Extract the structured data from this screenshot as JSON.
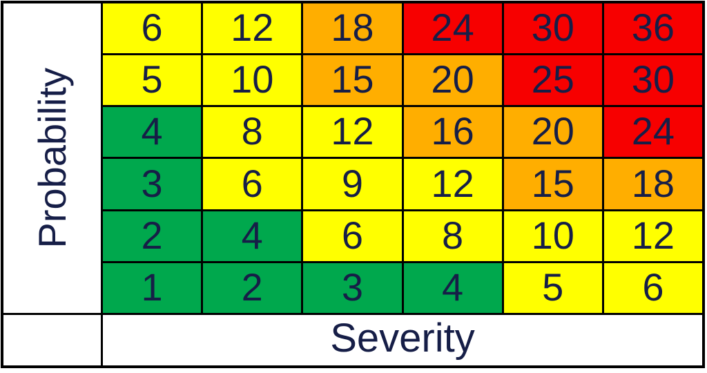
{
  "colors": {
    "green": "#00A84D",
    "yellow": "#FFFF00",
    "orange": "#FFAE00",
    "red": "#F70000",
    "text": "#161E47",
    "border": "#000000",
    "background": "#FFFFFF"
  },
  "chart_data": {
    "type": "heatmap",
    "title": "",
    "xlabel": "Severity",
    "ylabel": "Probability",
    "x_categories": [
      1,
      2,
      3,
      4,
      5,
      6
    ],
    "y_categories_top_to_bottom": [
      6,
      5,
      4,
      3,
      2,
      1
    ],
    "legend": "off",
    "rows": [
      {
        "probability": 6,
        "values": [
          6,
          12,
          18,
          24,
          30,
          36
        ],
        "levels": [
          "yellow",
          "yellow",
          "orange",
          "red",
          "red",
          "red"
        ]
      },
      {
        "probability": 5,
        "values": [
          5,
          10,
          15,
          20,
          25,
          30
        ],
        "levels": [
          "yellow",
          "yellow",
          "orange",
          "orange",
          "red",
          "red"
        ]
      },
      {
        "probability": 4,
        "values": [
          4,
          8,
          12,
          16,
          20,
          24
        ],
        "levels": [
          "green",
          "yellow",
          "yellow",
          "orange",
          "orange",
          "red"
        ]
      },
      {
        "probability": 3,
        "values": [
          3,
          6,
          9,
          12,
          15,
          18
        ],
        "levels": [
          "green",
          "yellow",
          "yellow",
          "yellow",
          "orange",
          "orange"
        ]
      },
      {
        "probability": 2,
        "values": [
          2,
          4,
          6,
          8,
          10,
          12
        ],
        "levels": [
          "green",
          "green",
          "yellow",
          "yellow",
          "yellow",
          "yellow"
        ]
      },
      {
        "probability": 1,
        "values": [
          1,
          2,
          3,
          4,
          5,
          6
        ],
        "levels": [
          "green",
          "green",
          "green",
          "green",
          "yellow",
          "yellow"
        ]
      }
    ]
  }
}
